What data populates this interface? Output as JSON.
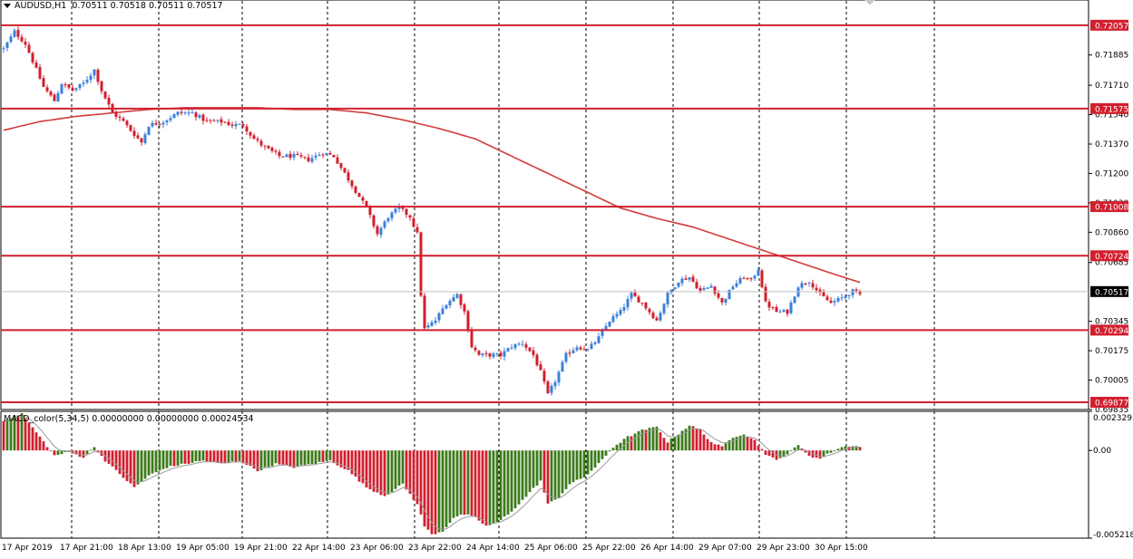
{
  "header": {
    "symbol": "AUDUSD,H1",
    "ohlc": "0.70511 0.70518 0.70511 0.70517"
  },
  "macd_header": {
    "label": "MACD_color(5,34,5) 0.00000000 0.00000000 0.00024534"
  },
  "colors": {
    "bull": "#3b7fd9",
    "bear": "#d21f2e",
    "level_line": "#d21f2e",
    "ma_line": "#d33a3a",
    "grid": "#000000",
    "macd_up": "#3c7a1a",
    "macd_down": "#d21f2e",
    "signal": "#999999"
  },
  "chart_data": [
    {
      "type": "candlestick",
      "symbol": "AUDUSD",
      "timeframe": "H1",
      "ylim": [
        0.69835,
        0.7214
      ],
      "y_ticks": [
        "0.71885",
        "0.71710",
        "0.71540",
        "0.71370",
        "0.71200",
        "0.71030",
        "0.70860",
        "0.70685",
        "0.70345",
        "0.70175",
        "0.70005",
        "0.69835"
      ],
      "x_ticks": [
        "17 Apr 2019",
        "17 Apr 21:00",
        "18 Apr 13:00",
        "19 Apr 05:00",
        "19 Apr 21:00",
        "22 Apr 14:00",
        "23 Apr 06:00",
        "23 Apr 22:00",
        "24 Apr 14:00",
        "25 Apr 06:00",
        "25 Apr 22:00",
        "26 Apr 14:00",
        "29 Apr 07:00",
        "29 Apr 23:00",
        "30 Apr 15:00"
      ],
      "levels": [
        {
          "label": "0.72057",
          "value": 0.72057
        },
        {
          "label": "0.71575",
          "value": 0.71575
        },
        {
          "label": "0.71008",
          "value": 0.71008
        },
        {
          "label": "0.70724",
          "value": 0.70724
        },
        {
          "label": "0.70294",
          "value": 0.70294
        },
        {
          "label": "0.69877",
          "value": 0.69877
        }
      ],
      "current_price": {
        "label": "0.70517",
        "value": 0.70517
      },
      "close_path": [
        [
          0,
          0.7192
        ],
        [
          3,
          0.7202
        ],
        [
          6,
          0.7195
        ],
        [
          9,
          0.718
        ],
        [
          11,
          0.717
        ],
        [
          14,
          0.7162
        ],
        [
          16,
          0.7172
        ],
        [
          19,
          0.7168
        ],
        [
          22,
          0.7172
        ],
        [
          25,
          0.718
        ],
        [
          27,
          0.7168
        ],
        [
          30,
          0.7155
        ],
        [
          33,
          0.715
        ],
        [
          35,
          0.7145
        ],
        [
          38,
          0.7138
        ],
        [
          40,
          0.7148
        ],
        [
          44,
          0.715
        ],
        [
          48,
          0.7155
        ],
        [
          52,
          0.7155
        ],
        [
          56,
          0.715
        ],
        [
          60,
          0.715
        ],
        [
          63,
          0.7148
        ],
        [
          66,
          0.7148
        ],
        [
          69,
          0.714
        ],
        [
          72,
          0.7135
        ],
        [
          76,
          0.713
        ],
        [
          80,
          0.713
        ],
        [
          84,
          0.7128
        ],
        [
          88,
          0.7132
        ],
        [
          91,
          0.713
        ],
        [
          94,
          0.712
        ],
        [
          97,
          0.711
        ],
        [
          100,
          0.71
        ],
        [
          103,
          0.7085
        ],
        [
          106,
          0.7095
        ],
        [
          109,
          0.71
        ],
        [
          112,
          0.7095
        ],
        [
          114,
          0.7085
        ],
        [
          115,
          0.705
        ],
        [
          116,
          0.703
        ],
        [
          119,
          0.7035
        ],
        [
          122,
          0.7045
        ],
        [
          125,
          0.705
        ],
        [
          127,
          0.704
        ],
        [
          129,
          0.702
        ],
        [
          131,
          0.7015
        ],
        [
          134,
          0.7015
        ],
        [
          137,
          0.7015
        ],
        [
          140,
          0.702
        ],
        [
          143,
          0.7022
        ],
        [
          146,
          0.7015
        ],
        [
          148,
          0.7005
        ],
        [
          150,
          0.6992
        ],
        [
          152,
          0.7
        ],
        [
          155,
          0.7015
        ],
        [
          158,
          0.702
        ],
        [
          161,
          0.7018
        ],
        [
          164,
          0.7025
        ],
        [
          167,
          0.7035
        ],
        [
          170,
          0.704
        ],
        [
          173,
          0.705
        ],
        [
          176,
          0.7045
        ],
        [
          178,
          0.704
        ],
        [
          180,
          0.7035
        ],
        [
          183,
          0.705
        ],
        [
          186,
          0.7058
        ],
        [
          189,
          0.706
        ],
        [
          192,
          0.7052
        ],
        [
          195,
          0.7055
        ],
        [
          198,
          0.7045
        ],
        [
          201,
          0.7055
        ],
        [
          204,
          0.706
        ],
        [
          206,
          0.7058
        ],
        [
          208,
          0.7065
        ],
        [
          210,
          0.7045
        ],
        [
          213,
          0.704
        ],
        [
          216,
          0.704
        ],
        [
          219,
          0.7055
        ],
        [
          222,
          0.7058
        ],
        [
          225,
          0.705
        ],
        [
          228,
          0.7045
        ],
        [
          231,
          0.7048
        ],
        [
          234,
          0.7052
        ],
        [
          236,
          0.705
        ]
      ],
      "ma_path": [
        [
          0,
          0.7145
        ],
        [
          10,
          0.715
        ],
        [
          20,
          0.7153
        ],
        [
          30,
          0.7155
        ],
        [
          40,
          0.7157
        ],
        [
          50,
          0.7158
        ],
        [
          60,
          0.7158
        ],
        [
          70,
          0.7158
        ],
        [
          80,
          0.7157
        ],
        [
          90,
          0.7157
        ],
        [
          100,
          0.7155
        ],
        [
          110,
          0.7151
        ],
        [
          120,
          0.7146
        ],
        [
          130,
          0.714
        ],
        [
          140,
          0.713
        ],
        [
          150,
          0.712
        ],
        [
          160,
          0.711
        ],
        [
          170,
          0.71
        ],
        [
          180,
          0.7094
        ],
        [
          190,
          0.7089
        ],
        [
          200,
          0.7082
        ],
        [
          210,
          0.7075
        ],
        [
          220,
          0.7068
        ],
        [
          230,
          0.7061
        ],
        [
          236,
          0.7057
        ]
      ]
    },
    {
      "type": "bar",
      "name": "MACD_color(5,34,5)",
      "ylim": [
        -0.005218,
        0.0023295
      ],
      "y_ticks": [
        "0.0023295",
        "0.00",
        "-0.005218"
      ],
      "macd_path": [
        [
          0,
          0.0018
        ],
        [
          5,
          0.0022
        ],
        [
          10,
          0.0008
        ],
        [
          14,
          -0.0003
        ],
        [
          18,
          -0.0001
        ],
        [
          22,
          -0.0004
        ],
        [
          25,
          0.0002
        ],
        [
          28,
          -0.0006
        ],
        [
          32,
          -0.0014
        ],
        [
          36,
          -0.0022
        ],
        [
          40,
          -0.0015
        ],
        [
          45,
          -0.001
        ],
        [
          50,
          -0.0008
        ],
        [
          55,
          -0.0006
        ],
        [
          60,
          -0.0008
        ],
        [
          65,
          -0.0006
        ],
        [
          70,
          -0.0012
        ],
        [
          75,
          -0.0008
        ],
        [
          80,
          -0.001
        ],
        [
          85,
          -0.0008
        ],
        [
          90,
          -0.0006
        ],
        [
          95,
          -0.0012
        ],
        [
          100,
          -0.0022
        ],
        [
          105,
          -0.0027
        ],
        [
          108,
          -0.0023
        ],
        [
          110,
          -0.002
        ],
        [
          112,
          -0.0026
        ],
        [
          114,
          -0.0032
        ],
        [
          116,
          -0.0045
        ],
        [
          118,
          -0.005
        ],
        [
          121,
          -0.0048
        ],
        [
          124,
          -0.004
        ],
        [
          127,
          -0.0038
        ],
        [
          130,
          -0.004
        ],
        [
          133,
          -0.0045
        ],
        [
          136,
          -0.0043
        ],
        [
          139,
          -0.0038
        ],
        [
          142,
          -0.0032
        ],
        [
          145,
          -0.0025
        ],
        [
          148,
          -0.0018
        ],
        [
          150,
          -0.0032
        ],
        [
          153,
          -0.0028
        ],
        [
          156,
          -0.002
        ],
        [
          160,
          -0.0016
        ],
        [
          164,
          -0.0008
        ],
        [
          168,
          0.0002
        ],
        [
          172,
          0.0008
        ],
        [
          176,
          0.0012
        ],
        [
          180,
          0.0014
        ],
        [
          183,
          0.0005
        ],
        [
          186,
          0.001
        ],
        [
          189,
          0.0015
        ],
        [
          192,
          0.0012
        ],
        [
          195,
          0.0005
        ],
        [
          198,
          0.0002
        ],
        [
          201,
          0.0008
        ],
        [
          204,
          0.001
        ],
        [
          207,
          0.0006
        ],
        [
          210,
          -0.0002
        ],
        [
          213,
          -0.0006
        ],
        [
          216,
          -0.0002
        ],
        [
          219,
          0.0003
        ],
        [
          222,
          -0.0003
        ],
        [
          225,
          -0.0005
        ],
        [
          228,
          -0.0001
        ],
        [
          231,
          0.0002
        ],
        [
          234,
          0.0003
        ],
        [
          236,
          0.0002
        ]
      ]
    }
  ]
}
